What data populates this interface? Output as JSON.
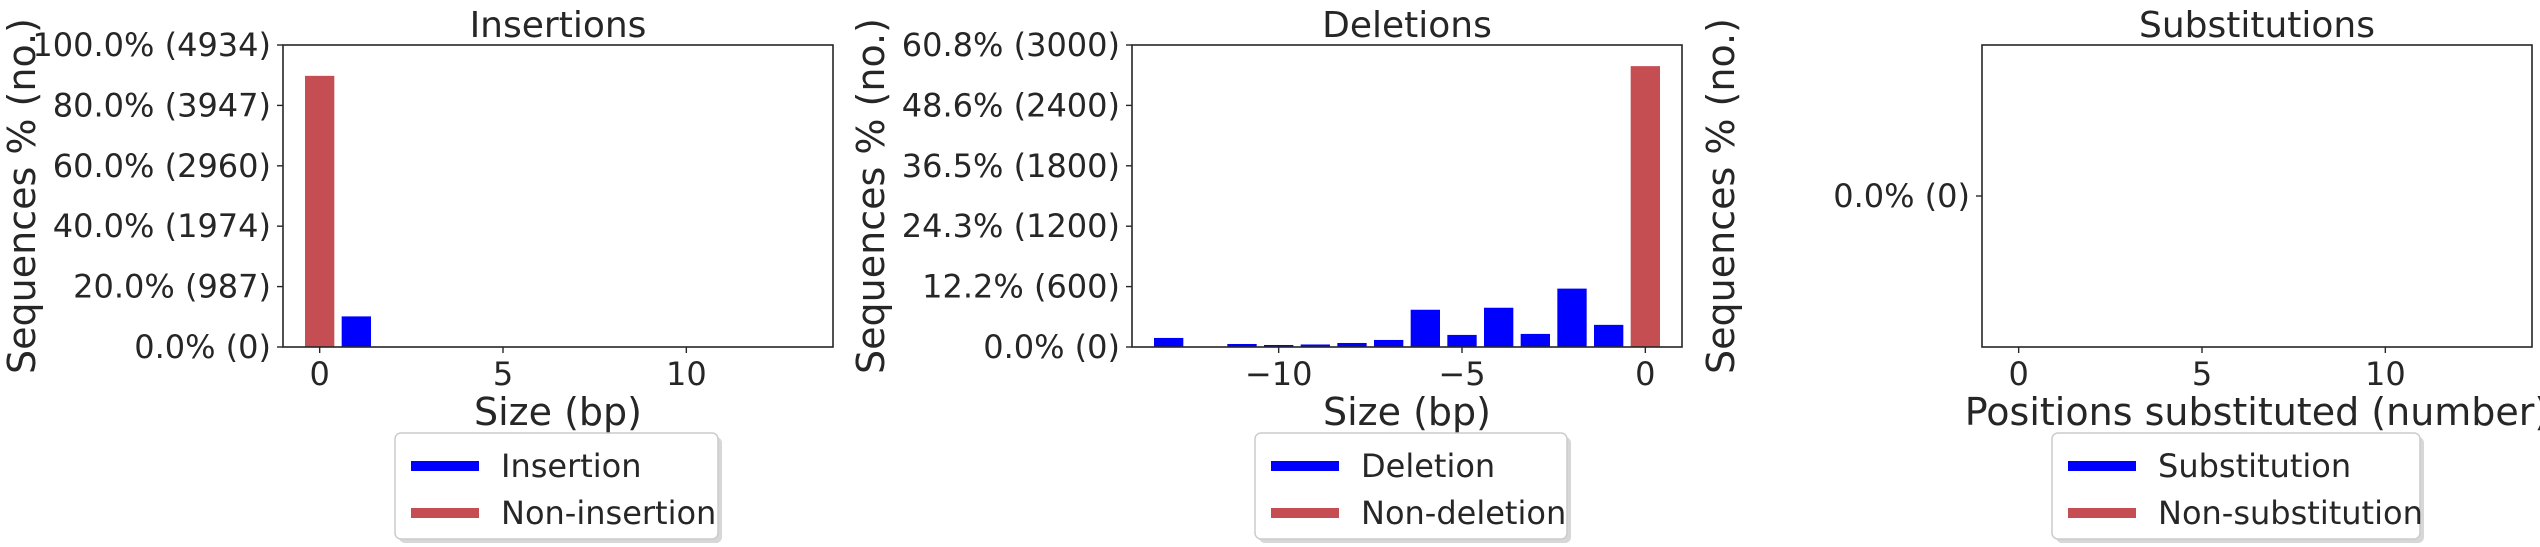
{
  "colors": {
    "modified": "#0000ff",
    "unmodified": "#c44e52",
    "axis": "#262626"
  },
  "chart_data": [
    {
      "type": "bar",
      "title": "Insertions",
      "xlabel": "Size (bp)",
      "ylabel": "Sequences % (no.)",
      "xlim": [
        -1,
        14
      ],
      "ylim": [
        0,
        4934
      ],
      "xticks": [
        0,
        5,
        10
      ],
      "xtick_labels": [
        "0",
        "5",
        "10"
      ],
      "yticks": [
        0,
        987,
        1974,
        2960,
        3947,
        4934
      ],
      "ytick_labels": [
        "0.0% (0)",
        "20.0% (987)",
        "40.0% (1974)",
        "60.0% (2960)",
        "80.0% (3947)",
        "100.0% (4934)"
      ],
      "series": [
        {
          "name": "Insertion",
          "color": "#0000ff",
          "x": [
            1
          ],
          "values": [
            500
          ]
        },
        {
          "name": "Non-insertion",
          "color": "#c44e52",
          "x": [
            0
          ],
          "values": [
            4430
          ]
        }
      ],
      "legend": [
        "Insertion",
        "Non-insertion"
      ],
      "legend_position": "bottom-center"
    },
    {
      "type": "bar",
      "title": "Deletions",
      "xlabel": "Size (bp)",
      "ylabel": "Sequences % (no.)",
      "xlim": [
        -14,
        1
      ],
      "ylim": [
        0,
        3000
      ],
      "xticks": [
        -10,
        -5,
        0
      ],
      "xtick_labels": [
        "−10",
        "−5",
        "0"
      ],
      "yticks": [
        0,
        600,
        1200,
        1800,
        2400,
        3000
      ],
      "ytick_labels": [
        "0.0% (0)",
        "12.2% (600)",
        "24.3% (1200)",
        "36.5% (1800)",
        "48.6% (2400)",
        "60.8% (3000)"
      ],
      "series": [
        {
          "name": "Deletion",
          "color": "#0000ff",
          "x": [
            -13,
            -11,
            -10,
            -9,
            -8,
            -7,
            -6,
            -5,
            -4,
            -3,
            -2,
            -1
          ],
          "values": [
            90,
            30,
            20,
            25,
            40,
            70,
            370,
            120,
            390,
            130,
            580,
            220
          ]
        },
        {
          "name": "Non-deletion",
          "color": "#c44e52",
          "x": [
            0
          ],
          "values": [
            2790
          ]
        }
      ],
      "legend": [
        "Deletion",
        "Non-deletion"
      ],
      "legend_position": "bottom-center"
    },
    {
      "type": "bar",
      "title": "Substitutions",
      "xlabel": "Positions substituted (number)",
      "ylabel": "Sequences % (no.)",
      "xlim": [
        -1,
        14
      ],
      "ylim": [
        -1,
        1
      ],
      "xticks": [
        0,
        5,
        10
      ],
      "xtick_labels": [
        "0",
        "5",
        "10"
      ],
      "yticks": [
        0
      ],
      "ytick_labels": [
        "0.0% (0)"
      ],
      "series": [
        {
          "name": "Substitution",
          "color": "#0000ff",
          "x": [],
          "values": []
        },
        {
          "name": "Non-substitution",
          "color": "#c44e52",
          "x": [],
          "values": []
        }
      ],
      "legend": [
        "Substitution",
        "Non-substitution"
      ],
      "legend_position": "bottom-center"
    }
  ]
}
